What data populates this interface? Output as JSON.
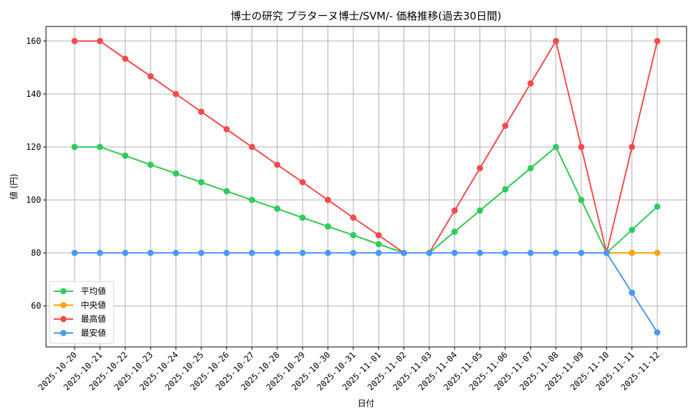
{
  "chart_data": {
    "type": "line",
    "title": "博士の研究 プラターヌ博士/SVM/- 価格推移(過去30日間)",
    "xlabel": "日付",
    "ylabel": "値 (円)",
    "ylim": [
      44.5,
      165.5
    ],
    "yticks": [
      60,
      80,
      100,
      120,
      140,
      160
    ],
    "grid": true,
    "legend_position": "lower left",
    "categories": [
      "2025-10-20",
      "2025-10-21",
      "2025-10-22",
      "2025-10-23",
      "2025-10-24",
      "2025-10-25",
      "2025-10-26",
      "2025-10-27",
      "2025-10-28",
      "2025-10-29",
      "2025-10-30",
      "2025-10-31",
      "2025-11-01",
      "2025-11-02",
      "2025-11-03",
      "2025-11-04",
      "2025-11-05",
      "2025-11-06",
      "2025-11-07",
      "2025-11-08",
      "2025-11-09",
      "2025-11-10",
      "2025-11-11",
      "2025-11-12"
    ],
    "series": [
      {
        "name": "平均値",
        "color": "#2ecc5f",
        "values": [
          120,
          120,
          116.7,
          113.3,
          110,
          106.7,
          103.3,
          100,
          96.7,
          93.3,
          90,
          86.7,
          83.3,
          80,
          80,
          88,
          96,
          104,
          112,
          120,
          100,
          80,
          88.7,
          97.5
        ]
      },
      {
        "name": "中央値",
        "color": "#f5a30a",
        "values": [
          120,
          120,
          116.7,
          113.3,
          110,
          106.7,
          103.3,
          100,
          96.7,
          93.3,
          90,
          86.7,
          83.3,
          80,
          80,
          88,
          96,
          104,
          112,
          120,
          100,
          80,
          80,
          80
        ]
      },
      {
        "name": "最高値",
        "color": "#f24b4b",
        "values": [
          160,
          160,
          153.3,
          146.7,
          140,
          133.3,
          126.7,
          120,
          113.3,
          106.7,
          100,
          93.3,
          86.7,
          80,
          80,
          96,
          112,
          128,
          144,
          160,
          120,
          80,
          120,
          160
        ]
      },
      {
        "name": "最安値",
        "color": "#4a9af5",
        "values": [
          80,
          80,
          80,
          80,
          80,
          80,
          80,
          80,
          80,
          80,
          80,
          80,
          80,
          80,
          80,
          80,
          80,
          80,
          80,
          80,
          80,
          80,
          65,
          50
        ]
      }
    ]
  }
}
